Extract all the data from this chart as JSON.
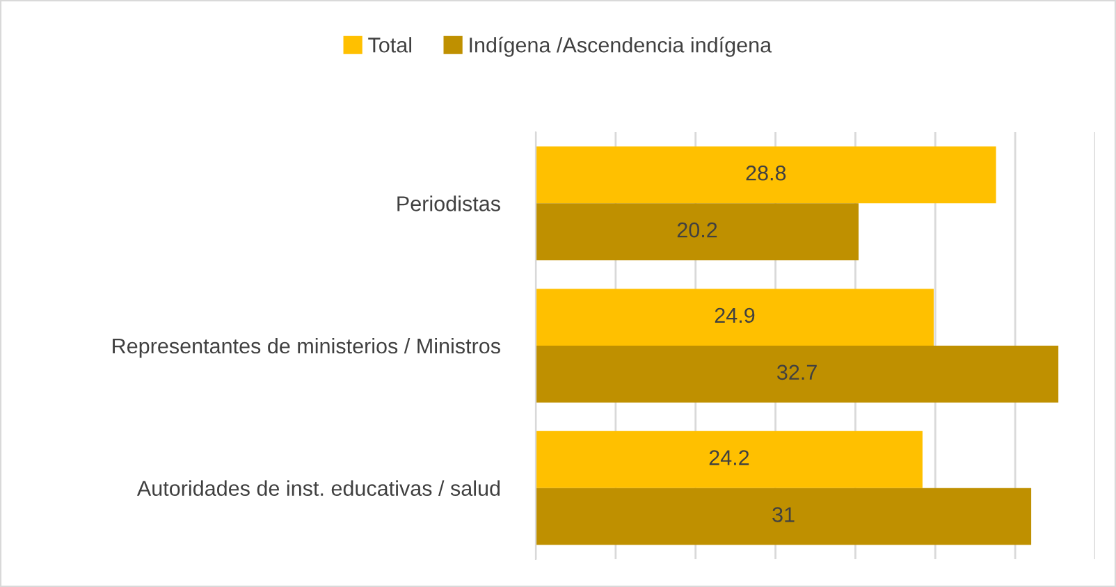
{
  "chart_data": {
    "type": "bar",
    "orientation": "horizontal",
    "categories": [
      "Periodistas",
      "Representantes de ministerios / Ministros",
      "Autoridades de inst. educativas / salud"
    ],
    "series": [
      {
        "name": "Total",
        "color": "#ffc000",
        "values": [
          28.8,
          24.9,
          24.2
        ]
      },
      {
        "name": "Indígena /Ascendencia indígena",
        "color": "#bf9000",
        "values": [
          20.2,
          32.7,
          31
        ]
      }
    ],
    "xlim": [
      0,
      35
    ],
    "xticks": [
      {
        "value": 0,
        "label": null
      },
      {
        "value": 5,
        "label": null
      },
      {
        "value": 10,
        "label": null
      },
      {
        "value": 15,
        "label": null
      },
      {
        "value": 20,
        "label": null
      },
      {
        "value": 25,
        "label": null
      },
      {
        "value": 30,
        "label": null
      },
      {
        "value": 35,
        "label": null
      }
    ],
    "tick_labels": "y",
    "grid": "x",
    "legend": "top",
    "data_labels": true
  }
}
